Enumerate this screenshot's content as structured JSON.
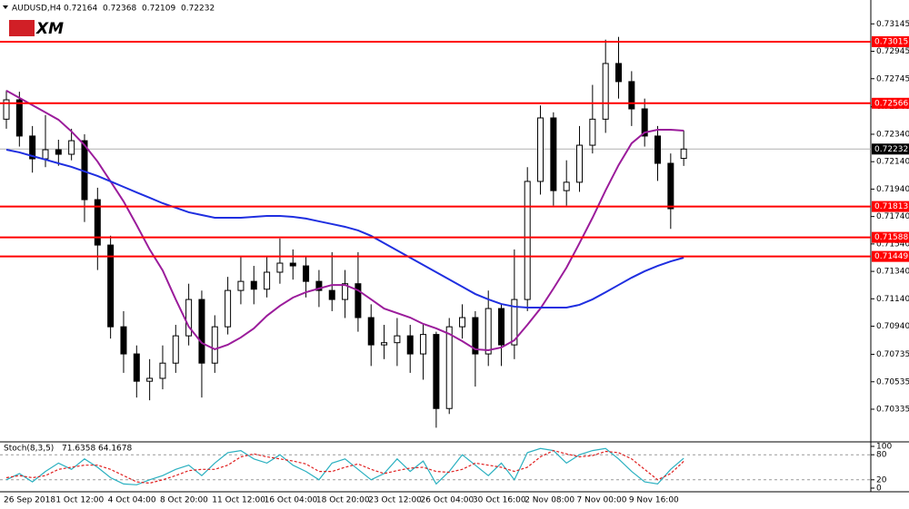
{
  "chart_data": [
    {
      "type": "candlestick",
      "title": "AUDUSD,H4",
      "logo": "XM",
      "categories": [
        "26 Sep 2018",
        null,
        null,
        null,
        "1 Oct 12:00",
        null,
        null,
        null,
        "4 Oct 04:00",
        null,
        null,
        null,
        "8 Oct 20:00",
        null,
        null,
        null,
        "11 Oct 12:00",
        null,
        null,
        null,
        "16 Oct 04:00",
        null,
        null,
        null,
        "18 Oct 20:00",
        null,
        null,
        null,
        "23 Oct 12:00",
        null,
        null,
        null,
        "26 Oct 04:00",
        null,
        null,
        null,
        "30 Oct 16:00",
        null,
        null,
        null,
        "2 Nov 08:00",
        null,
        null,
        null,
        "7 Nov 00:00",
        null,
        null,
        null,
        "9 Nov 16:00",
        null,
        null,
        null,
        null
      ],
      "open": [
        0.7245,
        0.72591,
        0.72327,
        0.72161,
        0.72227,
        0.72194,
        0.72293,
        0.71863,
        0.71532,
        0.70936,
        0.70738,
        0.70539,
        0.7056,
        0.70671,
        0.7087,
        0.71135,
        0.70671,
        0.70936,
        0.71201,
        0.71267,
        0.7121,
        0.71334,
        0.714,
        0.7138,
        0.71267,
        0.71201,
        0.71135,
        0.7125,
        0.71003,
        0.70804,
        0.7082,
        0.7087,
        0.70738,
        0.7088,
        0.7034,
        0.70936,
        0.71003,
        0.70738,
        0.71069,
        0.70804,
        0.71135,
        0.71996,
        0.72459,
        0.71929,
        0.7199,
        0.7226,
        0.7245,
        0.72856,
        0.72724,
        0.72525,
        0.72327,
        0.72128,
        0.72164
      ],
      "high": [
        0.7266,
        0.7265,
        0.724,
        0.7248,
        0.723,
        0.7238,
        0.7234,
        0.7195,
        0.716,
        0.7105,
        0.708,
        0.707,
        0.708,
        0.7095,
        0.7125,
        0.712,
        0.7102,
        0.713,
        0.7145,
        0.7138,
        0.7145,
        0.7158,
        0.715,
        0.7145,
        0.7135,
        0.7148,
        0.7135,
        0.7148,
        0.711,
        0.7095,
        0.71,
        0.7095,
        0.7095,
        0.709,
        0.71,
        0.711,
        0.7105,
        0.712,
        0.711,
        0.715,
        0.721,
        0.7255,
        0.725,
        0.7215,
        0.724,
        0.727,
        0.7303,
        0.7305,
        0.728,
        0.726,
        0.724,
        0.722,
        0.72368
      ],
      "low": [
        0.7238,
        0.7225,
        0.7206,
        0.721,
        0.7211,
        0.7215,
        0.717,
        0.7135,
        0.7085,
        0.706,
        0.7042,
        0.704,
        0.7048,
        0.706,
        0.708,
        0.7042,
        0.706,
        0.7088,
        0.711,
        0.711,
        0.7115,
        0.7125,
        0.7128,
        0.7115,
        0.7108,
        0.7105,
        0.71,
        0.709,
        0.7065,
        0.707,
        0.7065,
        0.706,
        0.7055,
        0.702,
        0.703,
        0.7085,
        0.705,
        0.7065,
        0.7065,
        0.707,
        0.7105,
        0.719,
        0.7182,
        0.7182,
        0.7192,
        0.722,
        0.7235,
        0.726,
        0.724,
        0.7225,
        0.72,
        0.7165,
        0.72109
      ],
      "close": [
        0.72591,
        0.72327,
        0.72161,
        0.72227,
        0.72194,
        0.72293,
        0.71863,
        0.71532,
        0.70936,
        0.70738,
        0.70539,
        0.7056,
        0.70671,
        0.7087,
        0.71135,
        0.70671,
        0.70936,
        0.71201,
        0.71267,
        0.7121,
        0.71334,
        0.714,
        0.7138,
        0.71267,
        0.71201,
        0.71135,
        0.7125,
        0.71003,
        0.70804,
        0.7082,
        0.7087,
        0.70738,
        0.7088,
        0.7034,
        0.70936,
        0.71003,
        0.70738,
        0.71069,
        0.70804,
        0.71135,
        0.71996,
        0.72459,
        0.71929,
        0.7199,
        0.7226,
        0.7245,
        0.72856,
        0.72724,
        0.72525,
        0.72327,
        0.72128,
        0.71797,
        0.72232
      ],
      "up_color": "#ffffff",
      "down_color": "#000000",
      "overlays": [
        {
          "color": "#9b1c9b",
          "values": [
            0.72658,
            0.72605,
            0.72552,
            0.72499,
            0.72446,
            0.7236,
            0.72261,
            0.72141,
            0.71996,
            0.7185,
            0.71678,
            0.715,
            0.71347,
            0.71136,
            0.70937,
            0.70818,
            0.70772,
            0.70805,
            0.70858,
            0.70924,
            0.71016,
            0.71089,
            0.71149,
            0.71188,
            0.71215,
            0.71241,
            0.71241,
            0.71202,
            0.71136,
            0.71069,
            0.71036,
            0.71003,
            0.70957,
            0.70924,
            0.70884,
            0.70831,
            0.70772,
            0.70765,
            0.70785,
            0.70838,
            0.7095,
            0.71069,
            0.71215,
            0.71367,
            0.71546,
            0.71731,
            0.7193,
            0.72115,
            0.72274,
            0.72353,
            0.72373,
            0.72373,
            0.72366
          ]
        },
        {
          "color": "#1f2fe0",
          "values": [
            0.72227,
            0.72208,
            0.72181,
            0.72155,
            0.72128,
            0.72102,
            0.72069,
            0.72036,
            0.71996,
            0.71956,
            0.71916,
            0.71877,
            0.71837,
            0.71804,
            0.71771,
            0.71751,
            0.71731,
            0.71731,
            0.71731,
            0.71738,
            0.71744,
            0.71744,
            0.71738,
            0.71725,
            0.71705,
            0.71685,
            0.71665,
            0.71639,
            0.71599,
            0.71546,
            0.71493,
            0.7144,
            0.71387,
            0.71334,
            0.71281,
            0.71228,
            0.71175,
            0.71136,
            0.71102,
            0.71083,
            0.71076,
            0.71076,
            0.71076,
            0.71076,
            0.71096,
            0.71136,
            0.71188,
            0.71241,
            0.71294,
            0.71341,
            0.7138,
            0.71413,
            0.7144
          ]
        }
      ],
      "levels": [
        {
          "value": 0.73015,
          "color": "#ff0000"
        },
        {
          "value": 0.72566,
          "color": "#ff0000"
        },
        {
          "value": 0.71813,
          "color": "#ff0000"
        },
        {
          "value": 0.71588,
          "color": "#ff0000"
        },
        {
          "value": 0.71449,
          "color": "#ff0000"
        }
      ],
      "ylim": [
        0.7011,
        0.73319
      ],
      "yticks": [
        0.73145,
        0.72945,
        0.72745,
        {
          "value": 0.7254,
          "label": "0.72540"
        },
        {
          "value": 0.7234,
          "label": "0.72340"
        },
        {
          "value": 0.7214,
          "label": "0.72140"
        },
        {
          "value": 0.7194,
          "label": "0.71940"
        },
        {
          "value": 0.7174,
          "label": "0.71740"
        },
        {
          "value": 0.7154,
          "label": "0.71540"
        },
        {
          "value": 0.7134,
          "label": "0.71340"
        },
        {
          "value": 0.7114,
          "label": "0.71140"
        },
        {
          "value": 0.7094,
          "label": "0.70940"
        },
        0.70735,
        0.70535,
        0.70335
      ]
    },
    {
      "type": "stochastic",
      "title": "Stoch(8,3,5)",
      "series": [
        {
          "color": "#2ab0c0",
          "dash": false,
          "values": [
            20,
            35,
            15,
            40,
            60,
            45,
            70,
            50,
            25,
            10,
            8,
            20,
            30,
            45,
            55,
            30,
            60,
            85,
            90,
            70,
            60,
            80,
            55,
            40,
            20,
            60,
            70,
            45,
            20,
            35,
            70,
            40,
            65,
            10,
            40,
            80,
            55,
            30,
            60,
            20,
            85,
            95,
            90,
            60,
            80,
            90,
            95,
            70,
            40,
            15,
            10,
            45,
            71.6358
          ]
        },
        {
          "color": "#e02020",
          "dash": true,
          "values": [
            25,
            30,
            25,
            30,
            45,
            50,
            55,
            55,
            45,
            30,
            15,
            12,
            20,
            30,
            42,
            45,
            45,
            55,
            75,
            82,
            75,
            70,
            65,
            58,
            40,
            40,
            50,
            58,
            45,
            35,
            42,
            48,
            50,
            40,
            38,
            45,
            60,
            55,
            50,
            40,
            50,
            75,
            90,
            82,
            75,
            78,
            88,
            85,
            70,
            45,
            20,
            35,
            64.1678
          ]
        }
      ],
      "ylim": [
        0,
        100
      ],
      "yticks": [
        0,
        20,
        80,
        100
      ],
      "levels": [
        20,
        80
      ]
    }
  ]
}
